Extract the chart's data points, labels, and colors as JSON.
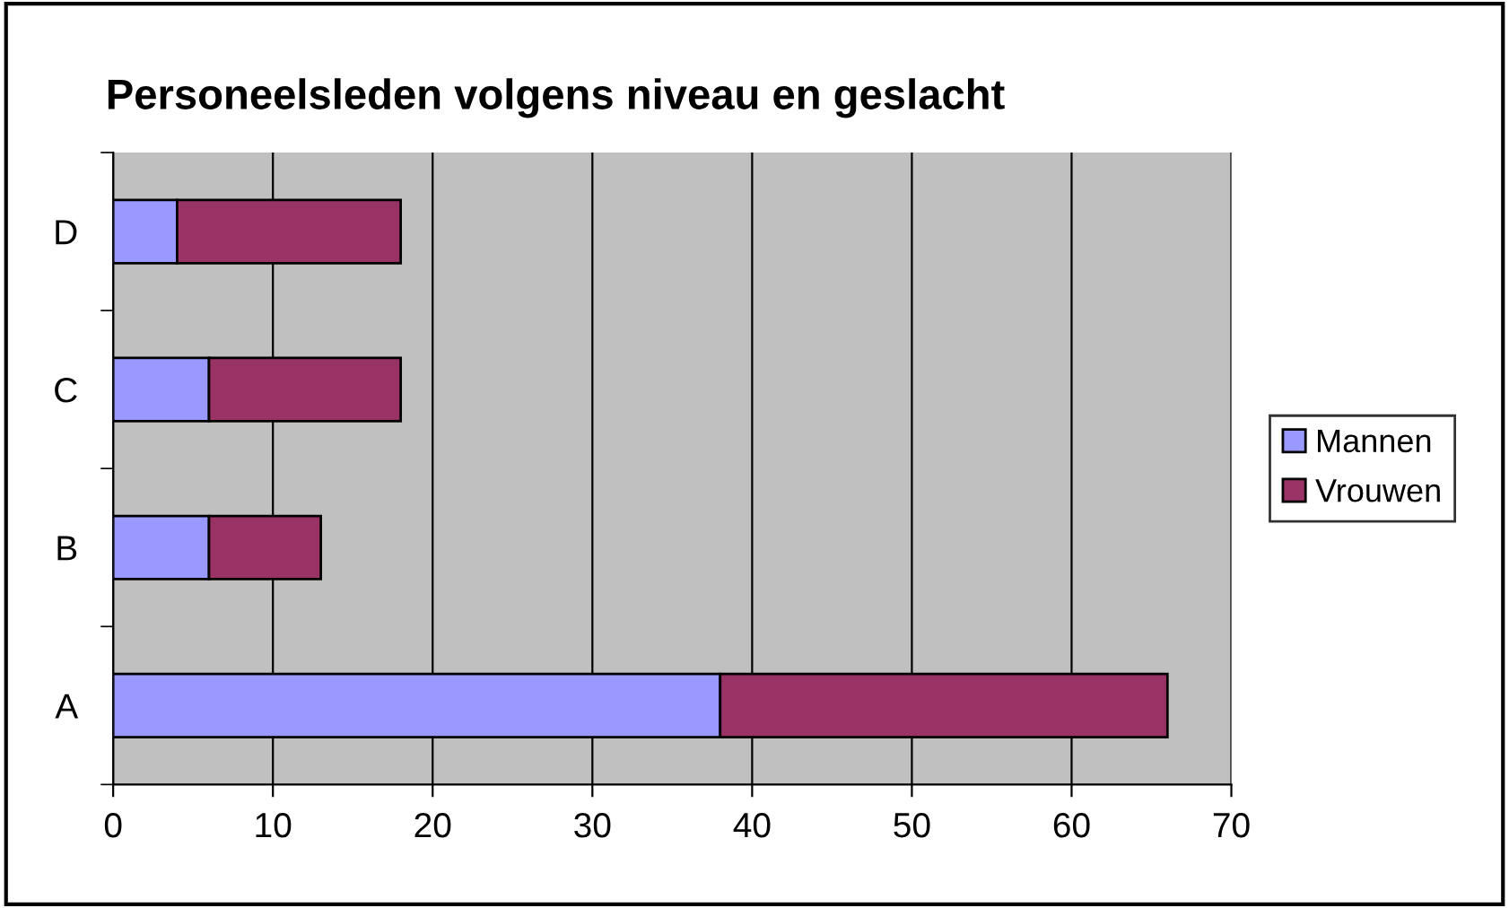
{
  "chart_data": {
    "type": "bar",
    "title": "Personeelsleden volgens niveau en geslacht",
    "orientation": "horizontal",
    "stacked": true,
    "categories": [
      "D",
      "C",
      "B",
      "A"
    ],
    "series": [
      {
        "name": "Mannen",
        "color": "#9999ff",
        "values": [
          4,
          6,
          6,
          38
        ]
      },
      {
        "name": "Vrouwen",
        "color": "#993366",
        "values": [
          14,
          12,
          7,
          28
        ]
      }
    ],
    "xlim": [
      0,
      70
    ],
    "xticks": [
      0,
      10,
      20,
      30,
      40,
      50,
      60,
      70
    ],
    "grid": "x",
    "legend": "right"
  }
}
